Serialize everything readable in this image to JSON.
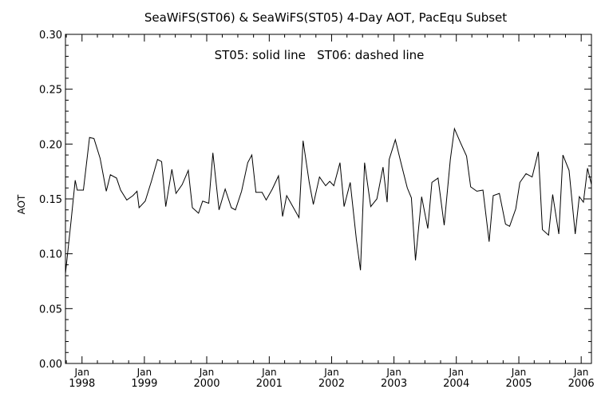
{
  "chart_data": {
    "type": "line",
    "title": "SeaWiFS(ST06) & SeaWiFS(ST05) 4-Day AOT, PacEqu Subset",
    "annotation": "ST05: solid line   ST06: dashed line",
    "ylabel": "AOT",
    "xlabel": "",
    "xlim": [
      "1997-09-26",
      "2006-03-02"
    ],
    "ylim": [
      0.0,
      0.3
    ],
    "yticks": [
      "0.00",
      "0.05",
      "0.10",
      "0.15",
      "0.20",
      "0.25",
      "0.30"
    ],
    "xticks": [
      {
        "month": "Jan",
        "year": "1998",
        "date": "1998-01-01"
      },
      {
        "month": "Jan",
        "year": "1999",
        "date": "1999-01-01"
      },
      {
        "month": "Jan",
        "year": "2000",
        "date": "2000-01-01"
      },
      {
        "month": "Jan",
        "year": "2001",
        "date": "2001-01-01"
      },
      {
        "month": "Jan",
        "year": "2002",
        "date": "2002-01-01"
      },
      {
        "month": "Jan",
        "year": "2003",
        "date": "2003-01-01"
      },
      {
        "month": "Jan",
        "year": "2004",
        "date": "2004-01-01"
      },
      {
        "month": "Jan",
        "year": "2005",
        "date": "2005-01-01"
      },
      {
        "month": "Jan",
        "year": "2006",
        "date": "2006-01-01"
      }
    ],
    "grid": false,
    "series": [
      {
        "name": "ST05",
        "style": "solid",
        "color": "#000000",
        "points": [
          [
            "1997-09-26",
            0.082
          ],
          [
            "1997-10-29",
            0.13
          ],
          [
            "1997-11-22",
            0.167
          ],
          [
            "1997-12-04",
            0.158
          ],
          [
            "1998-01-09",
            0.158
          ],
          [
            "1998-02-14",
            0.206
          ],
          [
            "1998-03-12",
            0.205
          ],
          [
            "1998-04-17",
            0.187
          ],
          [
            "1998-05-23",
            0.157
          ],
          [
            "1998-06-16",
            0.172
          ],
          [
            "1998-07-22",
            0.169
          ],
          [
            "1998-08-15",
            0.158
          ],
          [
            "1998-09-20",
            0.149
          ],
          [
            "1998-10-26",
            0.153
          ],
          [
            "1998-11-19",
            0.157
          ],
          [
            "1998-12-01",
            0.142
          ],
          [
            "1999-01-06",
            0.148
          ],
          [
            "1999-02-11",
            0.166
          ],
          [
            "1999-03-19",
            0.186
          ],
          [
            "1999-04-12",
            0.184
          ],
          [
            "1999-05-06",
            0.143
          ],
          [
            "1999-06-11",
            0.177
          ],
          [
            "1999-07-05",
            0.155
          ],
          [
            "1999-08-10",
            0.163
          ],
          [
            "1999-09-15",
            0.176
          ],
          [
            "1999-10-09",
            0.142
          ],
          [
            "1999-11-14",
            0.137
          ],
          [
            "1999-12-08",
            0.148
          ],
          [
            "2000-01-13",
            0.146
          ],
          [
            "2000-02-06",
            0.192
          ],
          [
            "2000-03-13",
            0.14
          ],
          [
            "2000-04-18",
            0.159
          ],
          [
            "2000-05-24",
            0.142
          ],
          [
            "2000-06-17",
            0.14
          ],
          [
            "2000-07-23",
            0.157
          ],
          [
            "2000-08-28",
            0.183
          ],
          [
            "2000-09-21",
            0.19
          ],
          [
            "2000-10-15",
            0.156
          ],
          [
            "2000-11-20",
            0.156
          ],
          [
            "2000-12-14",
            0.149
          ],
          [
            "2001-01-19",
            0.159
          ],
          [
            "2001-02-24",
            0.171
          ],
          [
            "2001-03-20",
            0.134
          ],
          [
            "2001-04-13",
            0.153
          ],
          [
            "2001-05-19",
            0.143
          ],
          [
            "2001-06-24",
            0.133
          ],
          [
            "2001-07-18",
            0.203
          ],
          [
            "2001-08-23",
            0.165
          ],
          [
            "2001-09-16",
            0.145
          ],
          [
            "2001-10-22",
            0.17
          ],
          [
            "2001-11-27",
            0.162
          ],
          [
            "2001-12-21",
            0.166
          ],
          [
            "2002-01-14",
            0.162
          ],
          [
            "2002-02-19",
            0.183
          ],
          [
            "2002-03-15",
            0.143
          ],
          [
            "2002-04-20",
            0.165
          ],
          [
            "2002-05-26",
            0.113
          ],
          [
            "2002-06-19",
            0.085
          ],
          [
            "2002-07-13",
            0.183
          ],
          [
            "2002-08-18",
            0.143
          ],
          [
            "2002-09-23",
            0.15
          ],
          [
            "2002-10-29",
            0.179
          ],
          [
            "2002-11-22",
            0.147
          ],
          [
            "2002-12-04",
            0.186
          ],
          [
            "2003-01-09",
            0.204
          ],
          [
            "2003-02-14",
            0.181
          ],
          [
            "2003-03-20",
            0.16
          ],
          [
            "2003-04-13",
            0.151
          ],
          [
            "2003-05-07",
            0.094
          ],
          [
            "2003-06-12",
            0.152
          ],
          [
            "2003-07-18",
            0.123
          ],
          [
            "2003-08-11",
            0.165
          ],
          [
            "2003-09-16",
            0.169
          ],
          [
            "2003-10-22",
            0.126
          ],
          [
            "2003-11-27",
            0.186
          ],
          [
            "2003-12-21",
            0.214
          ],
          [
            "2004-01-26",
            0.201
          ],
          [
            "2004-03-01",
            0.189
          ],
          [
            "2004-03-25",
            0.161
          ],
          [
            "2004-04-30",
            0.157
          ],
          [
            "2004-06-05",
            0.158
          ],
          [
            "2004-07-11",
            0.111
          ],
          [
            "2004-08-04",
            0.153
          ],
          [
            "2004-09-09",
            0.155
          ],
          [
            "2004-10-15",
            0.127
          ],
          [
            "2004-11-08",
            0.125
          ],
          [
            "2004-12-14",
            0.141
          ],
          [
            "2005-01-07",
            0.165
          ],
          [
            "2005-02-12",
            0.173
          ],
          [
            "2005-03-20",
            0.17
          ],
          [
            "2005-04-25",
            0.193
          ],
          [
            "2005-05-19",
            0.122
          ],
          [
            "2005-06-24",
            0.117
          ],
          [
            "2005-07-18",
            0.154
          ],
          [
            "2005-08-23",
            0.118
          ],
          [
            "2005-09-16",
            0.19
          ],
          [
            "2005-10-22",
            0.176
          ],
          [
            "2005-11-27",
            0.118
          ],
          [
            "2005-12-21",
            0.152
          ],
          [
            "2006-01-14",
            0.147
          ],
          [
            "2006-02-07",
            0.178
          ],
          [
            "2006-03-02",
            0.163
          ]
        ]
      },
      {
        "name": "ST06",
        "style": "dashed",
        "color": "#000000",
        "points": []
      }
    ]
  }
}
